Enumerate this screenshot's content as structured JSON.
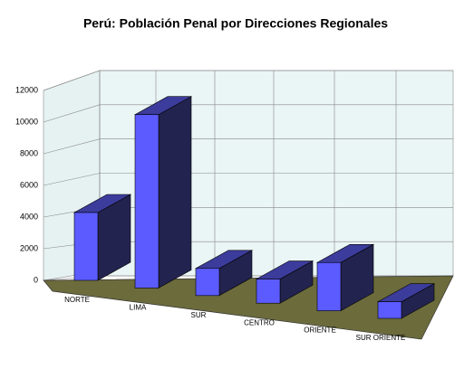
{
  "chart_data": {
    "type": "bar3d",
    "title": "Perú: Población Penal por Direcciones Regionales",
    "categories": [
      "NORTE",
      "LIMA",
      "SUR",
      "CENTRO",
      "ORIENTE",
      "SUR ORIENTE"
    ],
    "values": [
      4500,
      11500,
      1800,
      1600,
      3200,
      1100
    ],
    "color": "#5b5bff",
    "ylim": [
      0,
      12000
    ],
    "yticks": [
      0,
      2000,
      4000,
      6000,
      8000,
      10000,
      12000
    ],
    "grid": true
  }
}
